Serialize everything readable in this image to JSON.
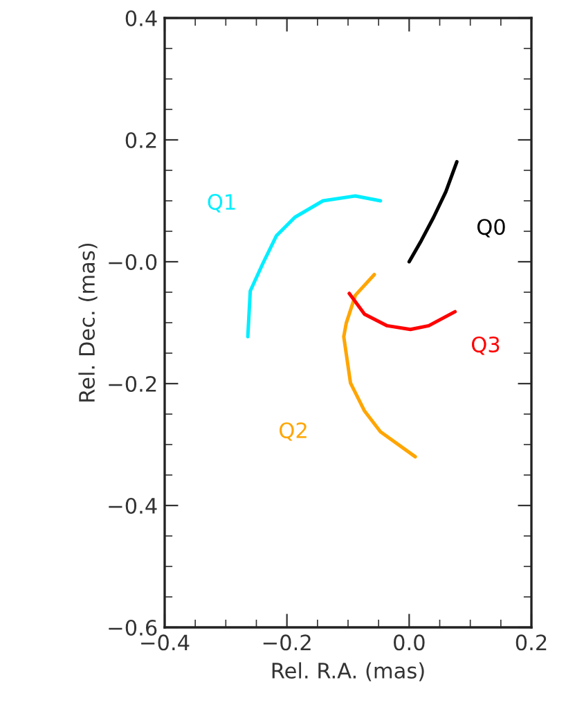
{
  "chart_data": {
    "type": "line",
    "xlabel": "Rel. R.A. (mas)",
    "ylabel": "Rel. Dec. (mas)",
    "xlim": [
      -0.4,
      0.2
    ],
    "ylim": [
      -0.6,
      0.4
    ],
    "xticks": [
      {
        "value": -0.4,
        "label": "−0.4"
      },
      {
        "value": -0.2,
        "label": "−0.2"
      },
      {
        "value": 0,
        "label": "0.0"
      },
      0.2
    ],
    "yticks": [
      {
        "value": -0.6,
        "label": "−0.6"
      },
      {
        "value": -0.4,
        "label": "−0.4"
      },
      {
        "value": -0.2,
        "label": "−0.2"
      },
      {
        "value": 0,
        "label": "−0.0"
      },
      0.2,
      0.4
    ],
    "grid": false,
    "legend": false,
    "marker": "none",
    "line_style": "solid",
    "series": [
      {
        "name": "Q0",
        "color": "#000000",
        "x": [
          0.0,
          0.02,
          0.04,
          0.06,
          0.078
        ],
        "values": [
          0.0,
          0.035,
          0.073,
          0.115,
          0.164
        ]
      },
      {
        "name": "Q1",
        "color": "#00eeff",
        "x": [
          -0.264,
          -0.26,
          -0.239,
          -0.217,
          -0.187,
          -0.141,
          -0.088,
          -0.047
        ],
        "values": [
          -0.123,
          -0.048,
          -0.002,
          0.043,
          0.073,
          0.1,
          0.108,
          0.1
        ]
      },
      {
        "name": "Q2",
        "color": "#ffa500",
        "x": [
          -0.057,
          -0.088,
          -0.103,
          -0.107,
          -0.096,
          -0.073,
          -0.047,
          0.01
        ],
        "values": [
          -0.021,
          -0.055,
          -0.101,
          -0.123,
          -0.199,
          -0.245,
          -0.279,
          -0.32
        ]
      },
      {
        "name": "Q3",
        "color": "#ff0000",
        "x": [
          -0.098,
          -0.073,
          -0.036,
          0.002,
          0.032,
          0.075
        ],
        "values": [
          -0.052,
          -0.086,
          -0.105,
          -0.111,
          -0.105,
          -0.082
        ]
      }
    ]
  }
}
